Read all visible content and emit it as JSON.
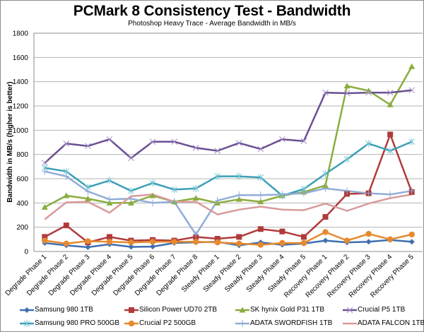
{
  "chart_data": {
    "type": "line",
    "title": "PCMark 8 Consistency Test - Bandwidth",
    "subtitle": "Photoshop Heavy Trace - Average Bandwidth in MB/s",
    "xlabel": "",
    "ylabel": "Bandwidth in MB/s (higher is better)",
    "ylim": [
      0,
      1800
    ],
    "yticks": [
      0,
      200,
      400,
      600,
      800,
      1000,
      1200,
      1400,
      1600,
      1800
    ],
    "grid": true,
    "legend_position": "bottom",
    "categories": [
      "Degrade Phase 1",
      "Degrade Phase 2",
      "Degrade Phase 3",
      "Degrade Phase 4",
      "Degrade Phase 5",
      "Degrade Phase 6",
      "Degrade Phase 7",
      "Degrade Phase 8",
      "Steady Phase 1",
      "Steady Phase 2",
      "Steady Phase 3",
      "Steady Phase 4",
      "Steady Phase 5",
      "Recovery Phase 1",
      "Recovery Phase 2",
      "Recovery Phase 3",
      "Recovery Phase 4",
      "Recovery Phase 5"
    ],
    "series": [
      {
        "name": "Samsung 980 1TB",
        "color": "#3f6faf",
        "marker": "diamond",
        "values": [
          70,
          50,
          35,
          60,
          38,
          40,
          70,
          75,
          80,
          50,
          75,
          55,
          65,
          90,
          75,
          80,
          95,
          80
        ]
      },
      {
        "name": "Silicon Power UD70 2TB",
        "color": "#b03b3b",
        "marker": "square",
        "values": [
          120,
          215,
          75,
          120,
          90,
          95,
          90,
          120,
          105,
          120,
          185,
          165,
          120,
          285,
          475,
          480,
          965,
          490
        ]
      },
      {
        "name": "SK hynix Gold P31 1TB",
        "color": "#8aad3f",
        "marker": "triangle",
        "values": [
          365,
          460,
          435,
          400,
          400,
          460,
          410,
          440,
          400,
          430,
          410,
          460,
          490,
          545,
          1365,
          1325,
          1210,
          1525
        ]
      },
      {
        "name": "Crucial P5 1TB",
        "color": "#6a4f93",
        "marker": "x",
        "values": [
          730,
          890,
          870,
          925,
          770,
          905,
          905,
          855,
          830,
          895,
          845,
          925,
          910,
          1310,
          1305,
          1310,
          1310,
          1330
        ]
      },
      {
        "name": "Samsung 980 PRO 500GB",
        "color": "#3aa0b5",
        "marker": "star",
        "values": [
          690,
          660,
          530,
          585,
          500,
          565,
          510,
          520,
          620,
          620,
          610,
          460,
          515,
          640,
          760,
          890,
          830,
          905
        ]
      },
      {
        "name": "Crucial P2 500GB",
        "color": "#e6892f",
        "marker": "circle",
        "values": [
          90,
          65,
          85,
          80,
          75,
          80,
          80,
          80,
          75,
          65,
          55,
          70,
          70,
          160,
          90,
          145,
          100,
          140
        ]
      },
      {
        "name": "ADATA SWORDFISH 1TB",
        "color": "#92acd8",
        "marker": "plus",
        "values": [
          660,
          620,
          495,
          430,
          435,
          400,
          410,
          140,
          420,
          465,
          465,
          470,
          480,
          520,
          500,
          480,
          470,
          500
        ]
      },
      {
        "name": "ADATA FALCON 1TB",
        "color": "#d99a9a",
        "marker": "none",
        "values": [
          265,
          405,
          410,
          320,
          455,
          470,
          410,
          410,
          305,
          345,
          370,
          345,
          340,
          395,
          335,
          395,
          440,
          470
        ]
      }
    ]
  }
}
